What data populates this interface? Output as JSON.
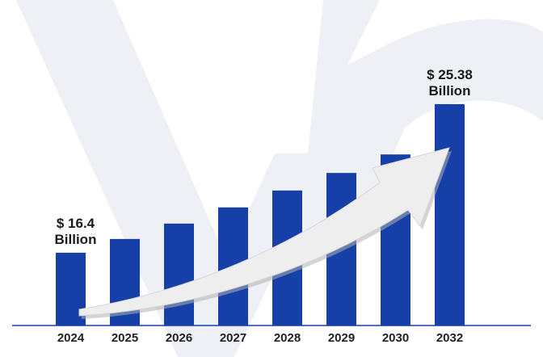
{
  "colors": {
    "bar": "#1640a8",
    "axis": "#1640a8",
    "arrow": "#eeeeee",
    "arrow_shadow": "#b0b0b0",
    "watermark": "#eef0f6",
    "text": "#1a1a1a"
  },
  "chart_data": {
    "type": "bar",
    "title": "",
    "xlabel": "",
    "ylabel": "",
    "categories": [
      "2024",
      "2025",
      "2026",
      "2027",
      "2028",
      "2029",
      "2030",
      "2032"
    ],
    "values": [
      16.4,
      17.23,
      18.16,
      19.14,
      20.16,
      21.22,
      22.34,
      25.38
    ],
    "ylim": [
      12.0,
      26.5
    ],
    "grid": false,
    "legend": "none",
    "annotations": [
      {
        "category": "2024",
        "line1": "$ 16.4",
        "line2": "Billion"
      },
      {
        "category": "2032",
        "line1": "$ 25.38",
        "line2": "Billion"
      }
    ],
    "trend_arrow": true
  }
}
